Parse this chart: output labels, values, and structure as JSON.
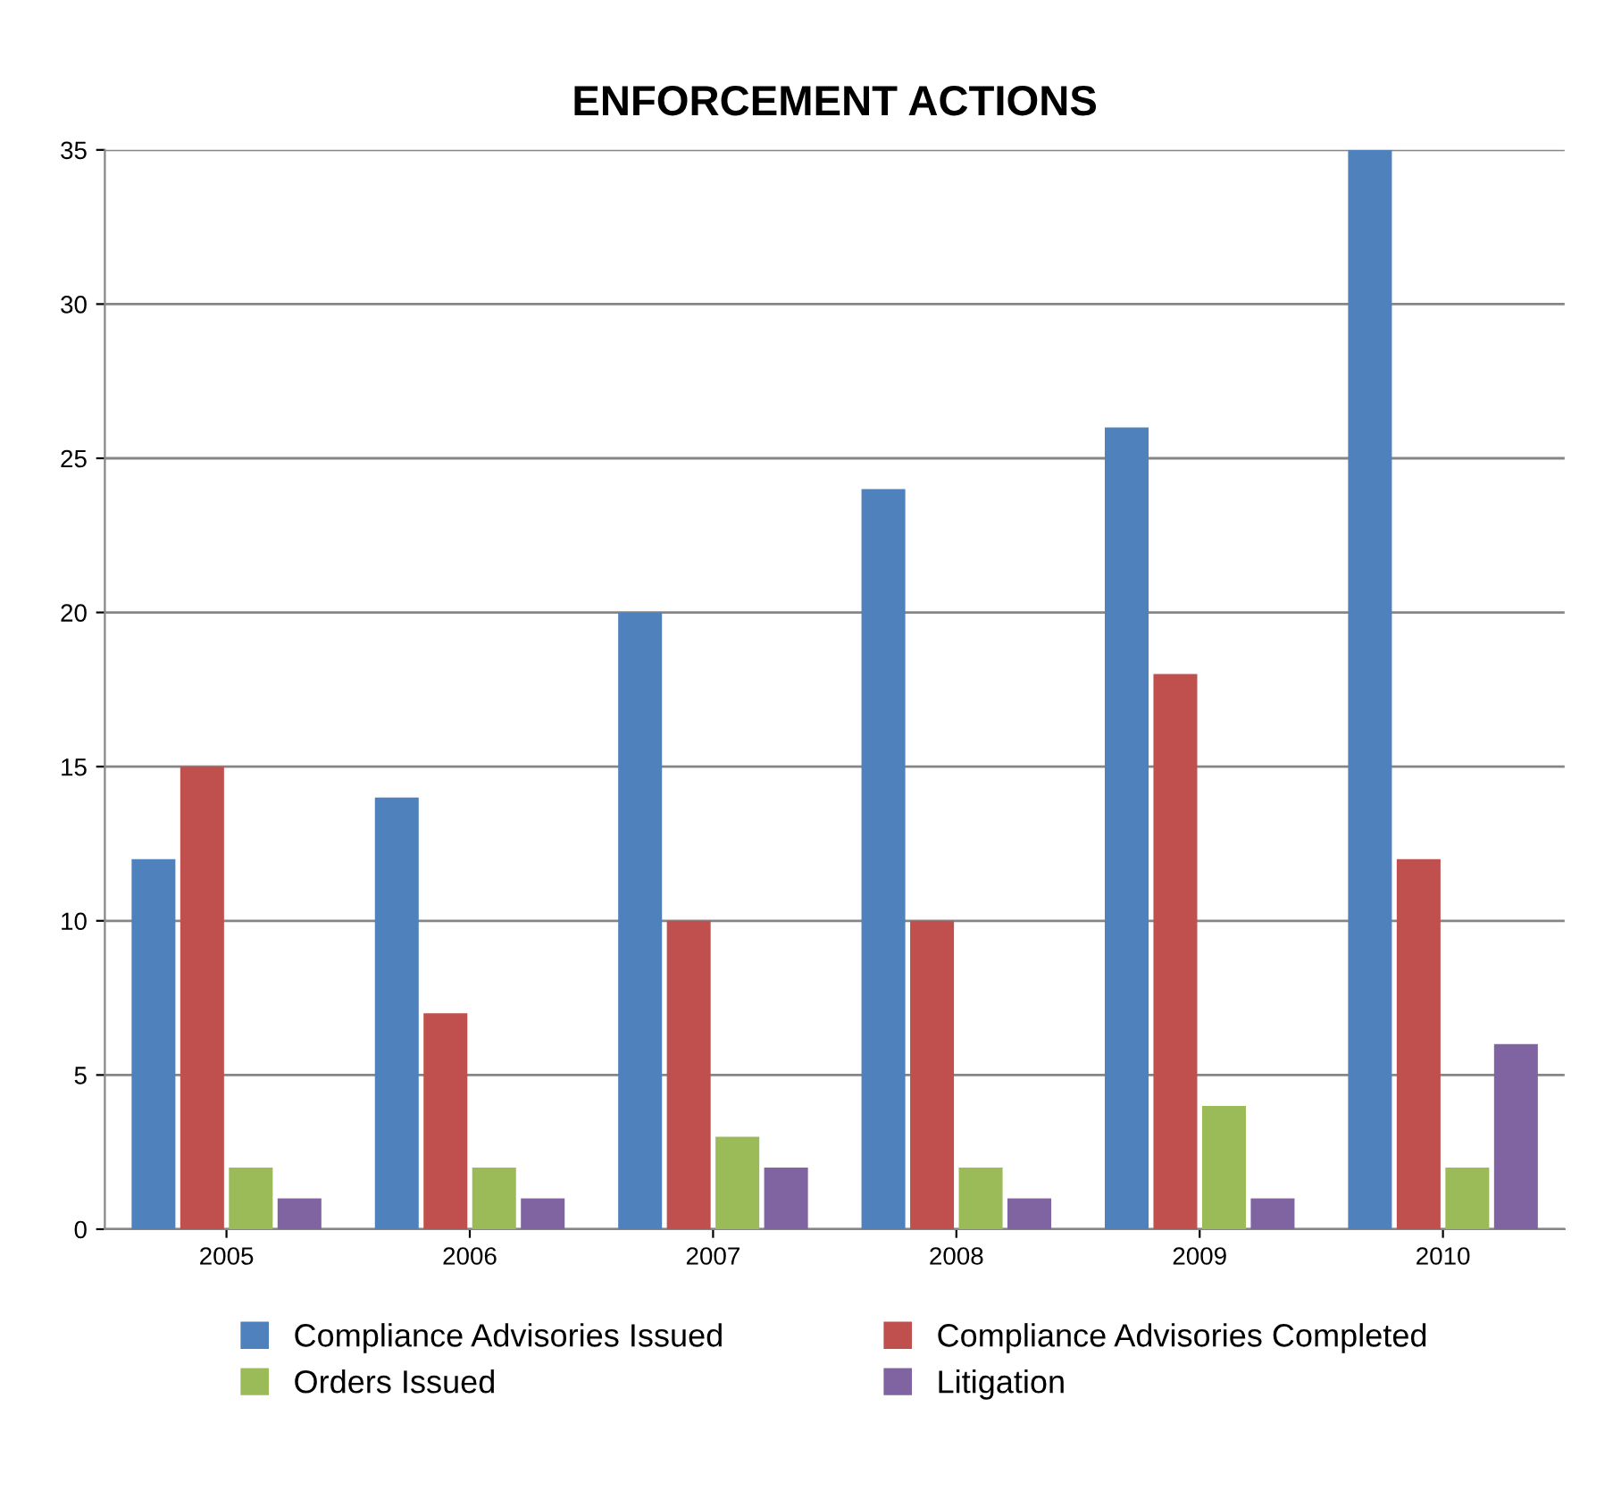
{
  "chart_data": {
    "type": "bar",
    "title": "ENFORCEMENT ACTIONS",
    "categories": [
      "2005",
      "2006",
      "2007",
      "2008",
      "2009",
      "2010"
    ],
    "series": [
      {
        "name": "Compliance Advisories Issued",
        "color": "#4f81bd",
        "values": [
          12,
          14,
          20,
          24,
          26,
          35
        ]
      },
      {
        "name": "Compliance Advisories Completed",
        "color": "#c0504d",
        "values": [
          15,
          7,
          10,
          10,
          18,
          12
        ]
      },
      {
        "name": "Orders Issued",
        "color": "#9bbb59",
        "values": [
          2,
          2,
          3,
          2,
          4,
          2
        ]
      },
      {
        "name": "Litigation",
        "color": "#8064a2",
        "values": [
          1,
          1,
          2,
          1,
          1,
          6
        ]
      }
    ],
    "ylim": [
      0,
      35
    ],
    "yticks": [
      0,
      5,
      10,
      15,
      20,
      25,
      30,
      35
    ],
    "grid": "y",
    "legend": "bottom"
  }
}
